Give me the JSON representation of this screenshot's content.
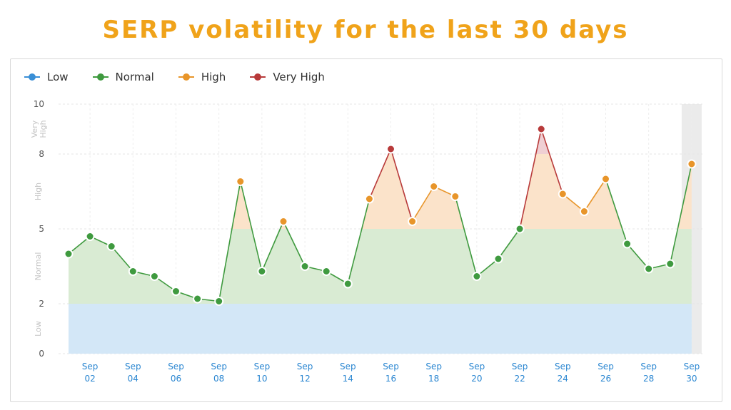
{
  "title": "SERP volatility for the last 30 days",
  "legend": [
    {
      "label": "Low",
      "color": "#3a8fd6"
    },
    {
      "label": "Normal",
      "color": "#3f9a3f"
    },
    {
      "label": "High",
      "color": "#e8952a"
    },
    {
      "label": "Very High",
      "color": "#b83a3a"
    }
  ],
  "chart_data": {
    "type": "area",
    "title": "SERP volatility for the last 30 days",
    "ylim": [
      0,
      10
    ],
    "y_ticks": [
      "0",
      "2",
      "5",
      "8",
      "10"
    ],
    "y_band_labels": [
      "Low",
      "Normal",
      "High",
      "Very High"
    ],
    "bands": [
      {
        "name": "Low",
        "from": 0,
        "to": 2,
        "color": "#d3e7f7",
        "point_color": "#3a8fd6"
      },
      {
        "name": "Normal",
        "from": 2,
        "to": 5,
        "color": "#d9ebd3",
        "point_color": "#3f9a3f"
      },
      {
        "name": "High",
        "from": 5,
        "to": 8,
        "color": "#fbe3ca",
        "point_color": "#e8952a"
      },
      {
        "name": "Very High",
        "from": 8,
        "to": 10,
        "color": "#efcfd3",
        "point_color": "#b83a3a"
      }
    ],
    "x_tick_labels": [
      {
        "day": 2,
        "top": "Sep",
        "bottom": "02"
      },
      {
        "day": 4,
        "top": "Sep",
        "bottom": "04"
      },
      {
        "day": 6,
        "top": "Sep",
        "bottom": "06"
      },
      {
        "day": 8,
        "top": "Sep",
        "bottom": "08"
      },
      {
        "day": 10,
        "top": "Sep",
        "bottom": "10"
      },
      {
        "day": 12,
        "top": "Sep",
        "bottom": "12"
      },
      {
        "day": 14,
        "top": "Sep",
        "bottom": "14"
      },
      {
        "day": 16,
        "top": "Sep",
        "bottom": "16"
      },
      {
        "day": 18,
        "top": "Sep",
        "bottom": "18"
      },
      {
        "day": 20,
        "top": "Sep",
        "bottom": "20"
      },
      {
        "day": 22,
        "top": "Sep",
        "bottom": "22"
      },
      {
        "day": 24,
        "top": "Sep",
        "bottom": "24"
      },
      {
        "day": 26,
        "top": "Sep",
        "bottom": "26"
      },
      {
        "day": 28,
        "top": "Sep",
        "bottom": "28"
      },
      {
        "day": 30,
        "top": "Sep",
        "bottom": "30"
      }
    ],
    "highlighted_day": 30,
    "points": [
      {
        "day": 1,
        "value": 4.0
      },
      {
        "day": 2,
        "value": 4.7
      },
      {
        "day": 3,
        "value": 4.3
      },
      {
        "day": 4,
        "value": 3.3
      },
      {
        "day": 5,
        "value": 3.1
      },
      {
        "day": 6,
        "value": 2.5
      },
      {
        "day": 7,
        "value": 2.2
      },
      {
        "day": 8,
        "value": 2.1
      },
      {
        "day": 9,
        "value": 6.9
      },
      {
        "day": 10,
        "value": 3.3
      },
      {
        "day": 11,
        "value": 5.3
      },
      {
        "day": 12,
        "value": 3.5
      },
      {
        "day": 13,
        "value": 3.3
      },
      {
        "day": 14,
        "value": 2.8
      },
      {
        "day": 15,
        "value": 6.2
      },
      {
        "day": 16,
        "value": 8.2
      },
      {
        "day": 17,
        "value": 5.3
      },
      {
        "day": 18,
        "value": 6.7
      },
      {
        "day": 19,
        "value": 6.3
      },
      {
        "day": 20,
        "value": 3.1
      },
      {
        "day": 21,
        "value": 3.8
      },
      {
        "day": 22,
        "value": 5.0
      },
      {
        "day": 23,
        "value": 9.0
      },
      {
        "day": 24,
        "value": 6.4
      },
      {
        "day": 25,
        "value": 5.7
      },
      {
        "day": 26,
        "value": 7.0
      },
      {
        "day": 27,
        "value": 4.4
      },
      {
        "day": 28,
        "value": 3.4
      },
      {
        "day": 29,
        "value": 3.6
      },
      {
        "day": 30,
        "value": 7.6
      }
    ],
    "grid": true
  }
}
